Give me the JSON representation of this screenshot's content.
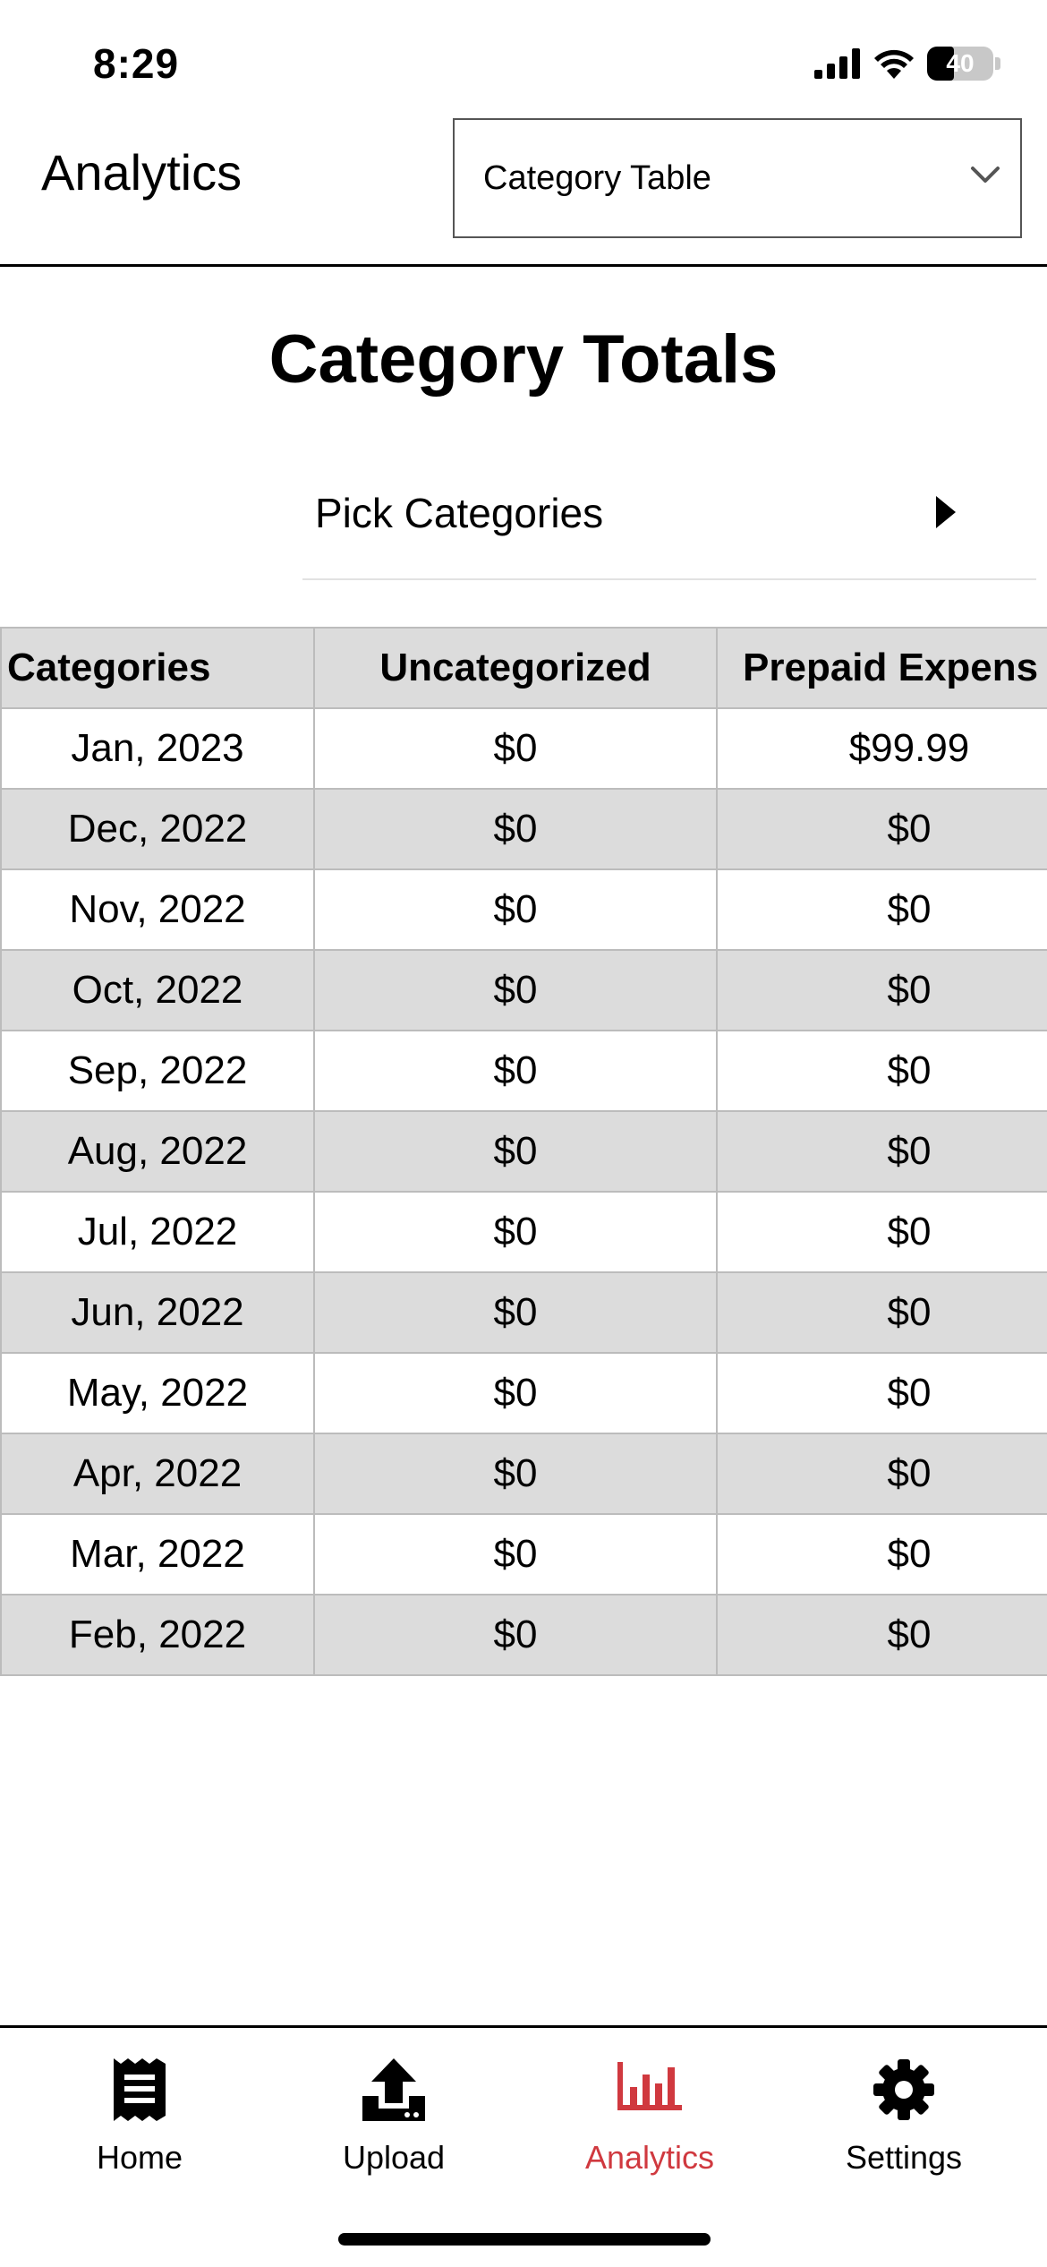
{
  "status_bar": {
    "time": "8:29",
    "battery": "40",
    "battery_level": 0.4
  },
  "header": {
    "title": "Analytics",
    "view_select": {
      "selected": "Category Table"
    }
  },
  "page_title": "Category Totals",
  "picker": {
    "label": "Pick Categories"
  },
  "table": {
    "columns": [
      "Categories",
      "Uncategorized",
      "Prepaid Expens"
    ],
    "rows": [
      [
        "Jan, 2023",
        "$0",
        "$99.99"
      ],
      [
        "Dec, 2022",
        "$0",
        "$0"
      ],
      [
        "Nov, 2022",
        "$0",
        "$0"
      ],
      [
        "Oct, 2022",
        "$0",
        "$0"
      ],
      [
        "Sep, 2022",
        "$0",
        "$0"
      ],
      [
        "Aug, 2022",
        "$0",
        "$0"
      ],
      [
        "Jul, 2022",
        "$0",
        "$0"
      ],
      [
        "Jun, 2022",
        "$0",
        "$0"
      ],
      [
        "May, 2022",
        "$0",
        "$0"
      ],
      [
        "Apr, 2022",
        "$0",
        "$0"
      ],
      [
        "Mar, 2022",
        "$0",
        "$0"
      ],
      [
        "Feb, 2022",
        "$0",
        "$0"
      ]
    ]
  },
  "tabbar": {
    "active_color": "#d0393f",
    "items": [
      {
        "label": "Home",
        "icon": "receipt-icon",
        "active": false
      },
      {
        "label": "Upload",
        "icon": "upload-icon",
        "active": false
      },
      {
        "label": "Analytics",
        "icon": "bar-chart-icon",
        "active": true
      },
      {
        "label": "Settings",
        "icon": "gear-icon",
        "active": false
      }
    ]
  }
}
